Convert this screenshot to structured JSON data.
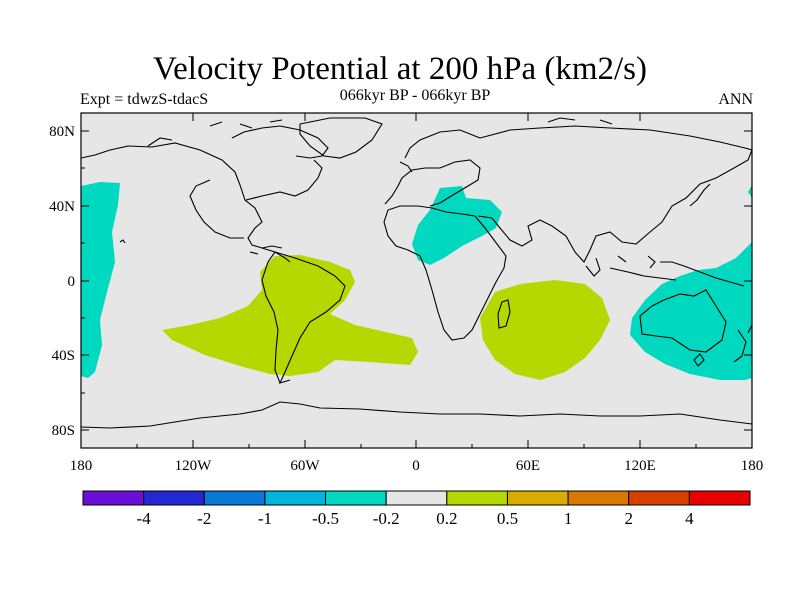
{
  "title": "Velocity Potential at 200 hPa (km2/s)",
  "expt": "Expt = tdwzS-tdacS",
  "period": "066kyr BP - 066kyr BP",
  "season": "ANN",
  "lat_ticks": [
    "80N",
    "40N",
    "0",
    "40S",
    "80S"
  ],
  "lon_ticks": [
    "180",
    "120W",
    "60W",
    "0",
    "60E",
    "120E",
    "180"
  ],
  "colorbar": {
    "colors": [
      "#6a0fd8",
      "#2228d2",
      "#0a78d6",
      "#00b4dd",
      "#00d8c0",
      "#e6e6e6",
      "#b4d800",
      "#d8ad00",
      "#d87800",
      "#d84000",
      "#e80000"
    ],
    "labels": [
      "-4",
      "-2",
      "-1",
      "-0.5",
      "-0.2",
      "0.2",
      "0.5",
      "1",
      "2",
      "4"
    ]
  },
  "colors": {
    "ocean_background": "#e6e6e6",
    "negative_fill": "#00d8c0",
    "positive_fill": "#b4d800",
    "coastline": "#000000"
  }
}
